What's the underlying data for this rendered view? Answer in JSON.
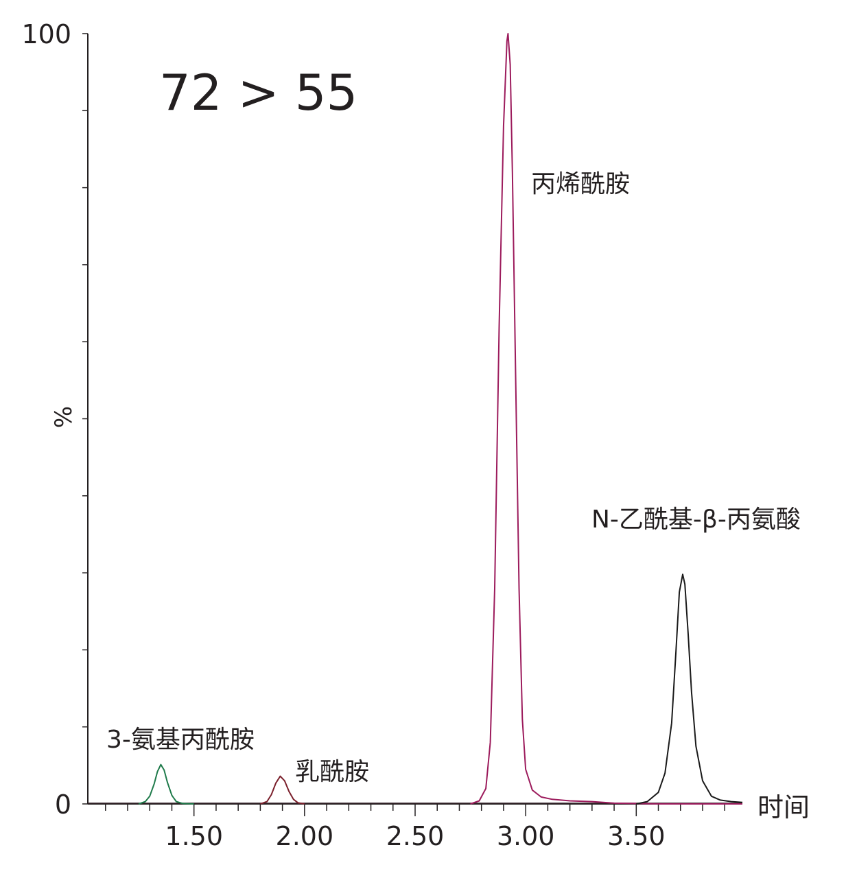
{
  "chart_data": {
    "type": "line",
    "title": "72 > 55",
    "xlabel": "时间",
    "ylabel": "%",
    "xlim": [
      1.02,
      3.98
    ],
    "ylim": [
      0,
      100
    ],
    "x_ticks": [
      "1.50",
      "2.00",
      "2.50",
      "3.00",
      "3.50"
    ],
    "x_tick_values": [
      1.5,
      2.0,
      2.5,
      3.0,
      3.5
    ],
    "y_ticks": [
      "0",
      "100"
    ],
    "y_tick_values": [
      0,
      100
    ],
    "grid": false,
    "series": [
      {
        "name": "3-氨基丙酰胺",
        "color": "#1e7a4a",
        "peak_x": 1.35,
        "peak_y": 5.1,
        "points": [
          [
            1.25,
            0.0
          ],
          [
            1.28,
            0.3
          ],
          [
            1.3,
            1.0
          ],
          [
            1.32,
            2.6
          ],
          [
            1.335,
            4.2
          ],
          [
            1.35,
            5.1
          ],
          [
            1.365,
            4.4
          ],
          [
            1.38,
            2.8
          ],
          [
            1.4,
            1.1
          ],
          [
            1.42,
            0.3
          ],
          [
            1.45,
            0.05
          ],
          [
            1.5,
            0.0
          ]
        ]
      },
      {
        "name": "乳酰胺",
        "color": "#7a1f2b",
        "peak_x": 1.89,
        "peak_y": 3.6,
        "points": [
          [
            1.8,
            0.0
          ],
          [
            1.83,
            0.3
          ],
          [
            1.85,
            1.2
          ],
          [
            1.87,
            2.7
          ],
          [
            1.89,
            3.6
          ],
          [
            1.91,
            3.0
          ],
          [
            1.93,
            1.6
          ],
          [
            1.95,
            0.6
          ],
          [
            1.97,
            0.15
          ],
          [
            2.0,
            0.0
          ]
        ]
      },
      {
        "name": "丙烯酰胺",
        "color": "#9c1b5c",
        "peak_x": 2.92,
        "peak_y": 100,
        "points": [
          [
            2.75,
            0.0
          ],
          [
            2.79,
            0.4
          ],
          [
            2.82,
            2.0
          ],
          [
            2.84,
            8.0
          ],
          [
            2.86,
            28.0
          ],
          [
            2.88,
            62.0
          ],
          [
            2.9,
            88.0
          ],
          [
            2.915,
            99.0
          ],
          [
            2.92,
            100.0
          ],
          [
            2.93,
            96.0
          ],
          [
            2.94,
            82.0
          ],
          [
            2.955,
            55.0
          ],
          [
            2.97,
            28.0
          ],
          [
            2.985,
            11.0
          ],
          [
            3.0,
            4.5
          ],
          [
            3.03,
            1.8
          ],
          [
            3.07,
            0.9
          ],
          [
            3.12,
            0.6
          ],
          [
            3.2,
            0.4
          ],
          [
            3.3,
            0.3
          ],
          [
            3.4,
            0.1
          ],
          [
            3.6,
            0.0
          ],
          [
            3.98,
            0.0
          ]
        ]
      },
      {
        "name": "N-乙酰基-β-丙氨酸",
        "color": "#1a1a1a",
        "peak_x": 3.71,
        "peak_y": 29.8,
        "points": [
          [
            3.5,
            0.0
          ],
          [
            3.55,
            0.3
          ],
          [
            3.6,
            1.5
          ],
          [
            3.63,
            4.0
          ],
          [
            3.66,
            10.5
          ],
          [
            3.68,
            20.0
          ],
          [
            3.695,
            27.5
          ],
          [
            3.71,
            29.8
          ],
          [
            3.72,
            28.5
          ],
          [
            3.735,
            22.0
          ],
          [
            3.75,
            14.5
          ],
          [
            3.77,
            7.5
          ],
          [
            3.8,
            3.0
          ],
          [
            3.84,
            1.0
          ],
          [
            3.88,
            0.5
          ],
          [
            3.93,
            0.3
          ],
          [
            3.98,
            0.2
          ]
        ]
      }
    ]
  }
}
